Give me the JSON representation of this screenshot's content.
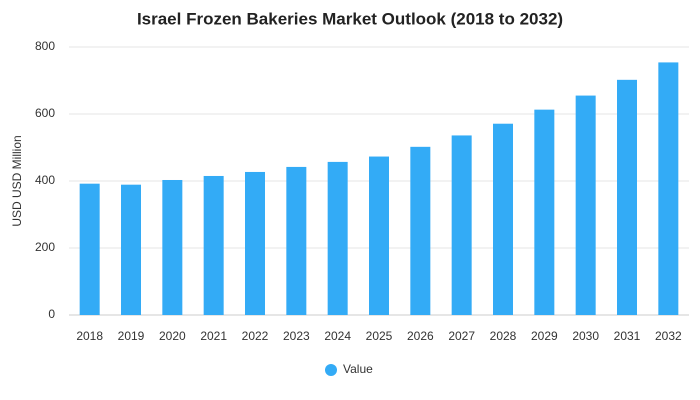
{
  "chart_data": {
    "type": "bar",
    "title": "Israel Frozen Bakeries Market Outlook (2018 to 2032)",
    "y_label": "USD USD Million",
    "categories": [
      "2018",
      "2019",
      "2020",
      "2021",
      "2022",
      "2023",
      "2024",
      "2025",
      "2026",
      "2027",
      "2028",
      "2029",
      "2030",
      "2031",
      "2032"
    ],
    "series": [
      {
        "name": "Value",
        "color": "#33abf6",
        "values": [
          392,
          389,
          403,
          415,
          427,
          442,
          457,
          473,
          502,
          536,
          571,
          613,
          655,
          702,
          754
        ]
      }
    ],
    "ylim": [
      0,
      800
    ],
    "yticks": [
      0,
      200,
      400,
      600,
      800
    ],
    "grid": true,
    "legend": "bottom"
  }
}
